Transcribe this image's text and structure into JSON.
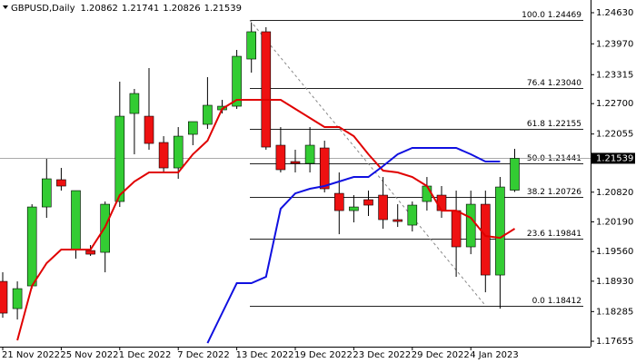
{
  "chart_data": {
    "type": "candlestick",
    "symbol": "GBPUSD,Daily",
    "categories": [
      "21 Nov 2022",
      null,
      null,
      null,
      "25 Nov 2022",
      null,
      null,
      null,
      "1 Dec 2022",
      null,
      null,
      null,
      "7 Dec 2022",
      null,
      null,
      null,
      "13 Dec 2022",
      null,
      null,
      null,
      "19 Dec 2022",
      null,
      null,
      null,
      "23 Dec 2022",
      null,
      null,
      null,
      "29 Dec 2022",
      null,
      null,
      null,
      "4 Jan 2023",
      null,
      null,
      null
    ],
    "open": [
      1.18926,
      1.18348,
      1.1883,
      1.20506,
      1.21085,
      1.19601,
      1.19581,
      1.19543,
      1.20622,
      1.22491,
      1.22433,
      1.21875,
      1.21335,
      1.22048,
      1.2226,
      1.22568,
      1.22645,
      1.23647,
      1.24226,
      1.21817,
      1.2147,
      1.21431,
      1.21759,
      1.20795,
      1.20429,
      1.20661,
      1.20757,
      1.20237,
      1.20121,
      1.20622,
      1.20757,
      1.20429,
      1.19659,
      1.20564,
      1.19061,
      1.20862
    ],
    "high": [
      1.19119,
      1.18926,
      1.20564,
      1.21528,
      1.21335,
      1.20853,
      1.19697,
      1.20622,
      1.23166,
      1.23012,
      1.23455,
      1.22009,
      1.22202,
      1.22318,
      1.23262,
      1.2278,
      1.2384,
      1.24418,
      1.24322,
      1.22202,
      1.2172,
      1.22202,
      1.21913,
      1.21239,
      1.20757,
      1.20853,
      1.21142,
      1.20564,
      1.20622,
      1.21142,
      1.2095,
      1.20853,
      1.20853,
      1.20853,
      1.21142,
      1.21741
    ],
    "low": [
      1.18155,
      1.18117,
      1.18772,
      1.20275,
      1.20853,
      1.19408,
      1.19466,
      1.19119,
      1.20506,
      1.21624,
      1.2172,
      1.21239,
      1.21104,
      1.21817,
      1.22164,
      1.22491,
      1.22588,
      1.23358,
      1.2172,
      1.21239,
      1.21239,
      1.21239,
      1.20815,
      1.19928,
      1.20179,
      1.20314,
      1.20044,
      1.20082,
      1.19986,
      1.20429,
      1.20275,
      1.19023,
      1.19504,
      1.18695,
      1.18348,
      1.20826
    ],
    "close": [
      1.18252,
      1.18772,
      1.20506,
      1.21104,
      1.2095,
      1.20853,
      1.19504,
      1.20564,
      1.22433,
      1.22915,
      1.21855,
      1.21335,
      1.22009,
      1.22318,
      1.22665,
      1.22645,
      1.23705,
      1.24226,
      1.21778,
      1.21297,
      1.21431,
      1.21817,
      1.20892,
      1.20429,
      1.20506,
      1.20545,
      1.20237,
      1.20198,
      1.20545,
      1.2095,
      1.20429,
      1.19659,
      1.20564,
      1.19061,
      1.2093,
      1.21539
    ],
    "up_color": "#33cc33",
    "down_color": "#ee1111",
    "lines": [
      {
        "color": "#e00000",
        "values": [
          null,
          1.17674,
          1.1883,
          1.19312,
          1.19601,
          1.19601,
          1.19601,
          1.20082,
          1.20757,
          1.21046,
          1.21239,
          1.21239,
          1.21239,
          1.21624,
          1.21913,
          1.22588,
          1.2278,
          1.2278,
          1.2278,
          1.2278,
          1.22588,
          1.22395,
          1.22202,
          1.22202,
          1.22009,
          1.21624,
          1.21277,
          1.21239,
          1.21142,
          1.2095,
          1.20429,
          1.20429,
          1.20275,
          1.1989,
          1.19851,
          1.20044
        ]
      },
      {
        "color": "#1010e0",
        "values": [
          null,
          null,
          null,
          null,
          null,
          null,
          null,
          null,
          null,
          null,
          null,
          null,
          null,
          null,
          1.17616,
          1.18252,
          1.18888,
          1.18888,
          1.19023,
          1.20468,
          1.20795,
          1.20892,
          1.2095,
          1.21046,
          1.21142,
          1.21142,
          1.21374,
          1.21624,
          1.21759,
          1.21759,
          1.21759,
          1.21759,
          1.21624,
          1.2147,
          1.2147,
          null
        ]
      }
    ],
    "fib_levels": [
      {
        "value": 1.24469,
        "label": "100.0 1.24469"
      },
      {
        "value": 1.2304,
        "label": "76.4 1.23040"
      },
      {
        "value": 1.22155,
        "label": "61.8 1.22155"
      },
      {
        "value": 1.21441,
        "label": "50.0 1.21441"
      },
      {
        "value": 1.20726,
        "label": "38.2 1.20726"
      },
      {
        "value": 1.19841,
        "label": "23.6 1.19841"
      },
      {
        "value": 1.18412,
        "label": "0.0 1.18412"
      }
    ],
    "ylim": [
      1.1754,
      1.249
    ],
    "yticks": [
      {
        "value": 1.2463,
        "label": "1.24630"
      },
      {
        "value": 1.2397,
        "label": "1.23970"
      },
      {
        "value": 1.23315,
        "label": "1.23315"
      },
      {
        "value": 1.227,
        "label": "1.22700"
      },
      {
        "value": 1.22055,
        "label": "1.22055"
      },
      {
        "value": 1.2082,
        "label": "1.20820"
      },
      {
        "value": 1.2019,
        "label": "1.20190"
      },
      {
        "value": 1.1956,
        "label": "1.19560"
      },
      {
        "value": 1.1893,
        "label": "1.18930"
      },
      {
        "value": 1.18285,
        "label": "1.18285"
      },
      {
        "value": 1.17655,
        "label": "1.17655"
      }
    ],
    "grid": false
  }
}
